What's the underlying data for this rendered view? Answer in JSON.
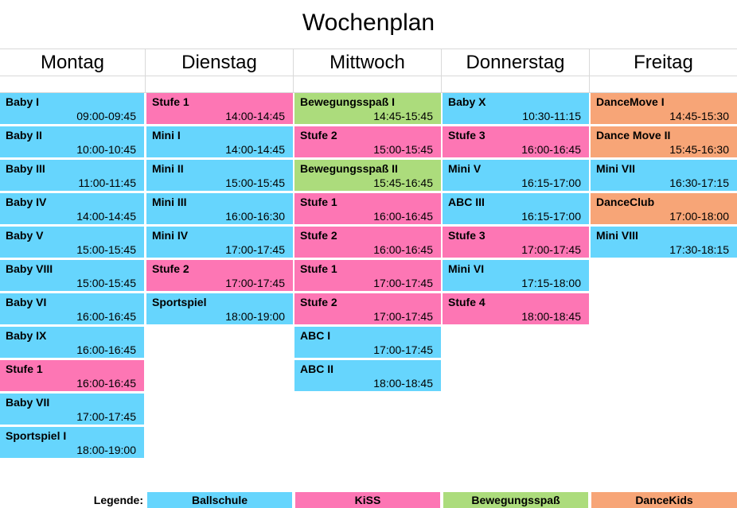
{
  "title": "Wochenplan",
  "colors": {
    "ballschule": "#66d5fd",
    "kiss": "#fd76b4",
    "bewegungsspass": "#acdc7c",
    "dancekids": "#f7a577"
  },
  "days": [
    {
      "name": "Montag",
      "slots": [
        {
          "name": "Baby I",
          "time": "09:00-09:45",
          "category": "ballschule"
        },
        {
          "name": "Baby II",
          "time": "10:00-10:45",
          "category": "ballschule"
        },
        {
          "name": "Baby III",
          "time": "11:00-11:45",
          "category": "ballschule"
        },
        {
          "name": "Baby IV",
          "time": "14:00-14:45",
          "category": "ballschule"
        },
        {
          "name": "Baby V",
          "time": "15:00-15:45",
          "category": "ballschule"
        },
        {
          "name": "Baby VIII",
          "time": "15:00-15:45",
          "category": "ballschule"
        },
        {
          "name": "Baby VI",
          "time": "16:00-16:45",
          "category": "ballschule"
        },
        {
          "name": "Baby IX",
          "time": "16:00-16:45",
          "category": "ballschule"
        },
        {
          "name": "Stufe 1",
          "time": "16:00-16:45",
          "category": "kiss"
        },
        {
          "name": "Baby VII",
          "time": "17:00-17:45",
          "category": "ballschule"
        },
        {
          "name": "Sportspiel I",
          "time": "18:00-19:00",
          "category": "ballschule"
        }
      ]
    },
    {
      "name": "Dienstag",
      "slots": [
        {
          "name": "Stufe 1",
          "time": "14:00-14:45",
          "category": "kiss"
        },
        {
          "name": "Mini I",
          "time": "14:00-14:45",
          "category": "ballschule"
        },
        {
          "name": "Mini II",
          "time": "15:00-15:45",
          "category": "ballschule"
        },
        {
          "name": "Mini III",
          "time": "16:00-16:30",
          "category": "ballschule"
        },
        {
          "name": "Mini IV",
          "time": "17:00-17:45",
          "category": "ballschule"
        },
        {
          "name": "Stufe 2",
          "time": "17:00-17:45",
          "category": "kiss"
        },
        {
          "name": "Sportspiel",
          "time": "18:00-19:00",
          "category": "ballschule"
        }
      ]
    },
    {
      "name": "Mittwoch",
      "slots": [
        {
          "name": "Bewegungsspaß I",
          "time": "14:45-15:45",
          "category": "bewegungsspass"
        },
        {
          "name": "Stufe 2",
          "time": "15:00-15:45",
          "category": "kiss"
        },
        {
          "name": "Bewegungsspaß II",
          "time": "15:45-16:45",
          "category": "bewegungsspass"
        },
        {
          "name": "Stufe 1",
          "time": "16:00-16:45",
          "category": "kiss"
        },
        {
          "name": "Stufe 2",
          "time": "16:00-16:45",
          "category": "kiss"
        },
        {
          "name": "Stufe 1",
          "time": "17:00-17:45",
          "category": "kiss"
        },
        {
          "name": "Stufe 2",
          "time": "17:00-17:45",
          "category": "kiss"
        },
        {
          "name": "ABC I",
          "time": "17:00-17:45",
          "category": "ballschule"
        },
        {
          "name": "ABC II",
          "time": "18:00-18:45",
          "category": "ballschule"
        }
      ]
    },
    {
      "name": "Donnerstag",
      "slots": [
        {
          "name": "Baby X",
          "time": "10:30-11:15",
          "category": "ballschule"
        },
        {
          "name": "Stufe 3",
          "time": "16:00-16:45",
          "category": "kiss"
        },
        {
          "name": "Mini V",
          "time": "16:15-17:00",
          "category": "ballschule"
        },
        {
          "name": "ABC III",
          "time": "16:15-17:00",
          "category": "ballschule"
        },
        {
          "name": "Stufe 3",
          "time": "17:00-17:45",
          "category": "kiss"
        },
        {
          "name": "Mini VI",
          "time": "17:15-18:00",
          "category": "ballschule"
        },
        {
          "name": "Stufe 4",
          "time": "18:00-18:45",
          "category": "kiss"
        }
      ]
    },
    {
      "name": "Freitag",
      "slots": [
        {
          "name": "DanceMove I",
          "time": "14:45-15:30",
          "category": "dancekids"
        },
        {
          "name": "Dance Move II",
          "time": "15:45-16:30",
          "category": "dancekids"
        },
        {
          "name": "Mini VII",
          "time": "16:30-17:15",
          "category": "ballschule"
        },
        {
          "name": "DanceClub",
          "time": "17:00-18:00",
          "category": "dancekids"
        },
        {
          "name": "Mini VIII",
          "time": "17:30-18:15",
          "category": "ballschule"
        }
      ]
    }
  ],
  "legend": {
    "label": "Legende:",
    "items": [
      {
        "label": "Ballschule",
        "category": "ballschule"
      },
      {
        "label": "KiSS",
        "category": "kiss"
      },
      {
        "label": "Bewegungsspaß",
        "category": "bewegungsspass"
      },
      {
        "label": "DanceKids",
        "category": "dancekids"
      }
    ]
  }
}
